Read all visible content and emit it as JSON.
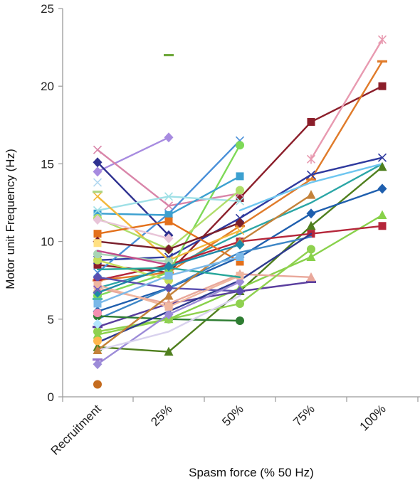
{
  "chart_data": {
    "type": "line",
    "title": "",
    "xlabel": "Spasm force (% 50 Hz)",
    "ylabel": "Motor unit Frequency (Hz)",
    "categories": [
      "Recruitment",
      "25%",
      "50%",
      "75%",
      "100%"
    ],
    "ylim": [
      0,
      25
    ],
    "yticks": [
      0,
      5,
      10,
      15,
      20,
      25
    ],
    "grid": false,
    "legend": "none",
    "series": [
      {
        "color": "#8B1E2A",
        "marker": "square",
        "values": [
          8.5,
          8.0,
          12.8,
          17.7,
          20.0
        ]
      },
      {
        "color": "#E07B2A",
        "marker": "dash",
        "values": [
          7.5,
          8.0,
          11.0,
          14.0,
          21.6
        ]
      },
      {
        "color": "#E89AB0",
        "marker": "star",
        "values": [
          null,
          null,
          null,
          15.3,
          23.0
        ]
      },
      {
        "color": "#2F3A9E",
        "marker": "x",
        "values": [
          8.8,
          9.0,
          11.5,
          14.3,
          15.4
        ]
      },
      {
        "color": "#2BA6A6",
        "marker": "none",
        "values": [
          7.0,
          8.3,
          10.5,
          12.5,
          15.0
        ]
      },
      {
        "color": "#6EC6F0",
        "marker": "none",
        "values": [
          null,
          null,
          12.0,
          13.8,
          15.0
        ]
      },
      {
        "color": "#4F7F1E",
        "marker": "triangle",
        "values": [
          3.2,
          2.9,
          6.8,
          11.0,
          14.8
        ]
      },
      {
        "color": "#1F5FAE",
        "marker": "diamond",
        "values": [
          5.5,
          7.0,
          9.0,
          11.8,
          13.4
        ]
      },
      {
        "color": "#88D14A",
        "marker": "triangle",
        "values": [
          4.0,
          5.0,
          7.0,
          9.0,
          11.7
        ]
      },
      {
        "color": "#B5263A",
        "marker": "square",
        "values": [
          7.5,
          8.5,
          10.0,
          10.5,
          11.0
        ]
      },
      {
        "color": "#A78BE0",
        "marker": "diamond",
        "values": [
          14.5,
          16.7,
          null,
          null,
          null
        ]
      },
      {
        "color": "#2E3190",
        "marker": "diamond",
        "values": [
          15.1,
          10.4,
          null,
          null,
          null
        ]
      },
      {
        "color": "#D985A9",
        "marker": "x",
        "values": [
          15.9,
          12.3,
          13.1,
          null,
          null
        ]
      },
      {
        "color": "#4A90D9",
        "marker": "x",
        "values": [
          8.0,
          11.8,
          16.5,
          null,
          null
        ]
      },
      {
        "color": "#7ED957",
        "marker": "circle",
        "values": [
          6.5,
          8.0,
          16.2,
          null,
          null
        ]
      },
      {
        "color": "#3CA0D0",
        "marker": "square",
        "values": [
          11.8,
          11.7,
          14.2,
          null,
          null
        ]
      },
      {
        "color": "#9FE0E6",
        "marker": "x",
        "values": [
          12.0,
          12.9,
          12.6,
          null,
          null
        ]
      },
      {
        "color": "#F2B83A",
        "marker": "x",
        "values": [
          12.9,
          8.8,
          10.7,
          null,
          null
        ]
      },
      {
        "color": "#B0DD6A",
        "marker": "circle",
        "values": [
          11.5,
          9.5,
          13.3,
          null,
          null
        ]
      },
      {
        "color": "#E3701B",
        "marker": "square",
        "values": [
          10.5,
          11.3,
          8.7,
          null,
          null
        ]
      },
      {
        "color": "#7A1F2C",
        "marker": "diamond",
        "values": [
          10.0,
          9.5,
          11.2,
          null,
          null
        ]
      },
      {
        "color": "#3D86C6",
        "marker": "none",
        "values": [
          5.0,
          7.0,
          9.3,
          10.3,
          null
        ]
      },
      {
        "color": "#5A3E9E",
        "marker": "dash",
        "values": [
          4.5,
          6.0,
          6.8,
          7.4,
          null
        ]
      },
      {
        "color": "#E9A89B",
        "marker": "triangle",
        "values": [
          7.0,
          6.0,
          7.9,
          7.7,
          null
        ]
      },
      {
        "color": "#2E7D32",
        "marker": "circle",
        "values": [
          5.2,
          5.0,
          4.9,
          null,
          null
        ]
      },
      {
        "color": "#8FD14F",
        "marker": "circle",
        "values": [
          4.2,
          5.0,
          6.0,
          9.5,
          null
        ]
      },
      {
        "color": "#2E3B8F",
        "marker": "none",
        "values": [
          3.5,
          5.5,
          7.5,
          10.5,
          null
        ]
      },
      {
        "color": "#C6DE5A",
        "marker": "circle",
        "values": [
          8.8,
          7.5,
          null,
          null,
          null
        ]
      },
      {
        "color": "#5B4FB0",
        "marker": "diamond",
        "values": [
          7.7,
          7.0,
          6.8,
          null,
          null
        ]
      },
      {
        "color": "#A8D5B5",
        "marker": "circle",
        "values": [
          9.2,
          8.7,
          null,
          null,
          null
        ]
      },
      {
        "color": "#C46B1E",
        "marker": "circle",
        "values": [
          0.8,
          null,
          null,
          null,
          null
        ]
      },
      {
        "color": "#6FA83B",
        "marker": "dash",
        "values": [
          null,
          22.0,
          null,
          null,
          null
        ]
      },
      {
        "color": "#9C8BD8",
        "marker": "diamond",
        "values": [
          2.1,
          5.3,
          7.4,
          null,
          null
        ]
      },
      {
        "color": "#D9D2EE",
        "marker": "none",
        "values": [
          3.0,
          4.2,
          6.5,
          null,
          null
        ]
      },
      {
        "color": "#F0B7A0",
        "marker": "square",
        "values": [
          7.2,
          5.8,
          7.8,
          null,
          null
        ]
      },
      {
        "color": "#C4823A",
        "marker": "triangle",
        "values": [
          3.0,
          6.5,
          10.0,
          13.0,
          null
        ]
      },
      {
        "color": "#26A69A",
        "marker": "none",
        "values": [
          8.2,
          8.3,
          7.7,
          null,
          null
        ]
      },
      {
        "color": "#7AB8E8",
        "marker": "square",
        "values": [
          6.0,
          7.8,
          9.0,
          null,
          null
        ]
      },
      {
        "color": "#C14C8A",
        "marker": "none",
        "values": [
          9.4,
          8.5,
          null,
          null,
          null
        ]
      },
      {
        "color": "#1E88A8",
        "marker": "diamond",
        "values": [
          6.7,
          8.4,
          9.8,
          null,
          null
        ]
      },
      {
        "color": "#E8C4D8",
        "marker": "diamond",
        "values": [
          11.4,
          10.2,
          null,
          null,
          null
        ]
      },
      {
        "color": "#B2D8F0",
        "marker": "x",
        "values": [
          13.8,
          null,
          null,
          null,
          null
        ]
      },
      {
        "color": "#7E57C2",
        "marker": "x",
        "values": [
          6.9,
          null,
          null,
          null,
          null
        ]
      },
      {
        "color": "#F48FB1",
        "marker": "circle",
        "values": [
          5.4,
          null,
          null,
          null,
          null
        ]
      },
      {
        "color": "#FFB74D",
        "marker": "circle",
        "values": [
          3.6,
          null,
          null,
          null,
          null
        ]
      },
      {
        "color": "#B3E5FC",
        "marker": "diamond",
        "values": [
          4.7,
          null,
          null,
          null,
          null
        ]
      },
      {
        "color": "#FFE082",
        "marker": "square",
        "values": [
          9.9,
          null,
          null,
          null,
          null
        ]
      },
      {
        "color": "#4DB6AC",
        "marker": "dash",
        "values": [
          6.3,
          null,
          null,
          null,
          null
        ]
      },
      {
        "color": "#9575CD",
        "marker": "dash",
        "values": [
          2.4,
          null,
          null,
          null,
          null
        ]
      },
      {
        "color": "#AED581",
        "marker": "dash",
        "values": [
          13.2,
          null,
          null,
          null,
          null
        ]
      }
    ]
  }
}
